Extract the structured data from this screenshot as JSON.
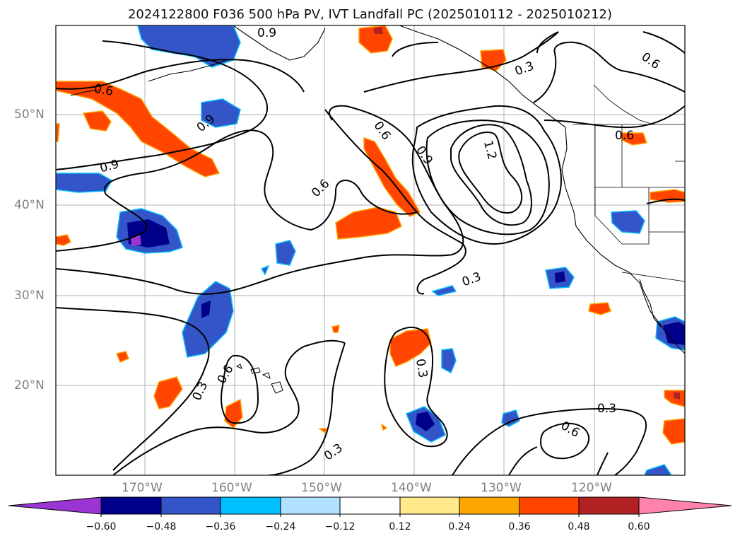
{
  "title": "2024122800 F036 500 hPa PV, IVT Landfall PC (2025010112 - 2025010212)",
  "lat_labels": [
    "50°N",
    "40°N",
    "30°N",
    "20°N"
  ],
  "lon_labels": [
    "170°W",
    "160°W",
    "150°W",
    "140°W",
    "130°W",
    "120°W"
  ],
  "contour_labels": [
    "0.9",
    "0.6",
    "0.9",
    "0.9",
    "0.6",
    "0.6",
    "0.9",
    "1.2",
    "0.3",
    "0.6",
    "0.6",
    "0.3",
    "0.6",
    "0.3",
    "0.3",
    "0.3",
    "0.6"
  ],
  "colorbar": {
    "colors": [
      "#9a35d3",
      "#00008b",
      "#3355c8",
      "#00bfff",
      "#b0e2ff",
      "#ffffff",
      "#ffe98a",
      "#ffa500",
      "#ff4500",
      "#b22222",
      "#ff82ab"
    ],
    "tick_labels": [
      "−0.60",
      "−0.48",
      "−0.36",
      "−0.24",
      "−0.12",
      "0.12",
      "0.24",
      "0.36",
      "0.48",
      "0.60"
    ]
  },
  "colors": {
    "positive": "#ff4500",
    "negative": "#3355c8",
    "contour": "#000000",
    "grid": "#b0b0b0"
  }
}
